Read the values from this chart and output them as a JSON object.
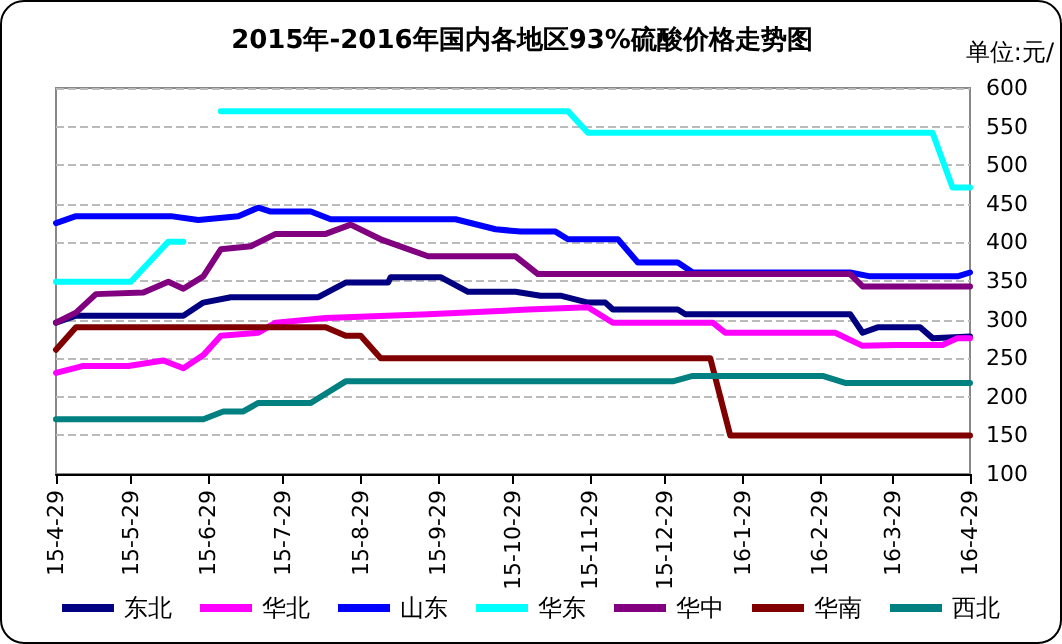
{
  "chart_data": {
    "type": "line",
    "title": "2015年-2016年国内各地区93%硫酸价格走势图",
    "ylabel": "单位:元/",
    "xlim": [
      "2015-04-29",
      "2016-04-29"
    ],
    "xticks": [
      {
        "value": "2015-04-29",
        "label": "15-4-29"
      },
      {
        "value": "2015-05-29",
        "label": "15-5-29"
      },
      {
        "value": "2015-06-29",
        "label": "15-6-29"
      },
      {
        "value": "2015-07-29",
        "label": "15-7-29"
      },
      {
        "value": "2015-08-29",
        "label": "15-8-29"
      },
      {
        "value": "2015-09-29",
        "label": "15-9-29"
      },
      {
        "value": "2015-10-29",
        "label": "15-10-29"
      },
      {
        "value": "2015-11-29",
        "label": "15-11-29"
      },
      {
        "value": "2015-12-29",
        "label": "15-12-29"
      },
      {
        "value": "2016-01-29",
        "label": "16-1-29"
      },
      {
        "value": "2016-02-29",
        "label": "16-2-29"
      },
      {
        "value": "2016-03-29",
        "label": "16-3-29"
      },
      {
        "value": "2016-04-29",
        "label": "16-4-29"
      }
    ],
    "ylim": [
      100,
      600
    ],
    "yticks": [
      100,
      150,
      200,
      250,
      300,
      350,
      400,
      450,
      500,
      550,
      600
    ],
    "grid": "y",
    "legend": "bottom",
    "marker": "none",
    "line_style": "solid",
    "series": [
      {
        "name": "东北",
        "color": "#000080",
        "x": [
          "2015-04-29",
          "2015-05-07",
          "2015-06-19",
          "2015-06-27",
          "2015-07-08",
          "2015-08-12",
          "2015-08-23",
          "2015-09-09",
          "2015-09-10",
          "2015-09-30",
          "2015-10-11",
          "2015-10-30",
          "2015-11-09",
          "2015-11-17",
          "2015-11-28",
          "2015-12-05",
          "2015-12-08",
          "2016-01-03",
          "2016-01-06",
          "2016-03-12",
          "2016-03-17",
          "2016-03-23",
          "2016-04-09",
          "2016-04-14",
          "2016-04-29"
        ],
        "values": [
          296,
          305,
          305,
          322,
          329,
          329,
          348,
          348,
          355,
          355,
          336,
          336,
          331,
          331,
          322,
          322,
          313,
          313,
          307,
          307,
          283,
          290,
          290,
          276,
          278
        ]
      },
      {
        "name": "华北",
        "color": "#ff00ff",
        "x": [
          "2015-04-29",
          "2015-05-10",
          "2015-05-28",
          "2015-06-11",
          "2015-06-19",
          "2015-06-27",
          "2015-07-04",
          "2015-07-19",
          "2015-07-26",
          "2015-08-15",
          "2015-09-25",
          "2015-11-04",
          "2015-11-28",
          "2015-12-08",
          "2016-01-17",
          "2016-01-22",
          "2016-03-06",
          "2016-03-17",
          "2016-03-30",
          "2016-04-18",
          "2016-04-24",
          "2016-04-29"
        ],
        "values": [
          231,
          240,
          240,
          247,
          237,
          254,
          279,
          283,
          296,
          302,
          307,
          313,
          316,
          296,
          296,
          283,
          283,
          266,
          267,
          267,
          276,
          276
        ]
      },
      {
        "name": "山东",
        "color": "#0000ff",
        "x": [
          "2015-04-29",
          "2015-05-07",
          "2015-06-14",
          "2015-06-25",
          "2015-07-11",
          "2015-07-19",
          "2015-07-24",
          "2015-08-09",
          "2015-08-17",
          "2015-10-06",
          "2015-10-22",
          "2015-11-01",
          "2015-11-15",
          "2015-11-20",
          "2015-12-10",
          "2015-12-18",
          "2016-01-03",
          "2016-01-09",
          "2016-03-12",
          "2016-03-20",
          "2016-04-24",
          "2016-04-29"
        ],
        "values": [
          425,
          434,
          434,
          429,
          434,
          445,
          440,
          440,
          430,
          430,
          417,
          414,
          414,
          404,
          404,
          374,
          374,
          361,
          361,
          356,
          356,
          361
        ]
      },
      {
        "name": "华东",
        "color": "#00ffff",
        "x": [
          "2015-04-29",
          "2015-05-29",
          "2015-06-13",
          "2015-06-19",
          "2015-06-25",
          "2015-07-04",
          "2015-11-20",
          "2015-11-28",
          "2016-04-14",
          "2016-04-22",
          "2016-04-29"
        ],
        "values": [
          349,
          349,
          401,
          401,
          null,
          570,
          570,
          542,
          542,
          471,
          471
        ]
      },
      {
        "name": "华中",
        "color": "#800080",
        "x": [
          "2015-04-29",
          "2015-05-07",
          "2015-05-15",
          "2015-06-03",
          "2015-06-13",
          "2015-06-19",
          "2015-06-27",
          "2015-07-04",
          "2015-07-16",
          "2015-07-26",
          "2015-08-15",
          "2015-08-25",
          "2015-09-06",
          "2015-09-25",
          "2015-10-30",
          "2015-11-08",
          "2016-03-12",
          "2016-03-17",
          "2016-04-29"
        ],
        "values": [
          296,
          309,
          333,
          335,
          349,
          340,
          356,
          391,
          395,
          411,
          411,
          423,
          404,
          382,
          382,
          359,
          359,
          343,
          343
        ]
      },
      {
        "name": "华南",
        "color": "#800000",
        "x": [
          "2015-04-29",
          "2015-05-07",
          "2015-08-15",
          "2015-08-23",
          "2015-08-29",
          "2015-09-06",
          "2016-01-16",
          "2016-01-24",
          "2016-04-29"
        ],
        "values": [
          261,
          290,
          290,
          279,
          279,
          250,
          250,
          150,
          150
        ]
      },
      {
        "name": "西北",
        "color": "#008080",
        "x": [
          "2015-04-29",
          "2015-06-27",
          "2015-07-05",
          "2015-07-13",
          "2015-07-19",
          "2015-08-09",
          "2015-08-23",
          "2016-01-01",
          "2016-01-09",
          "2016-03-01",
          "2016-03-10",
          "2016-04-29"
        ],
        "values": [
          171,
          171,
          181,
          181,
          192,
          192,
          220,
          220,
          227,
          227,
          218,
          218
        ]
      }
    ]
  }
}
